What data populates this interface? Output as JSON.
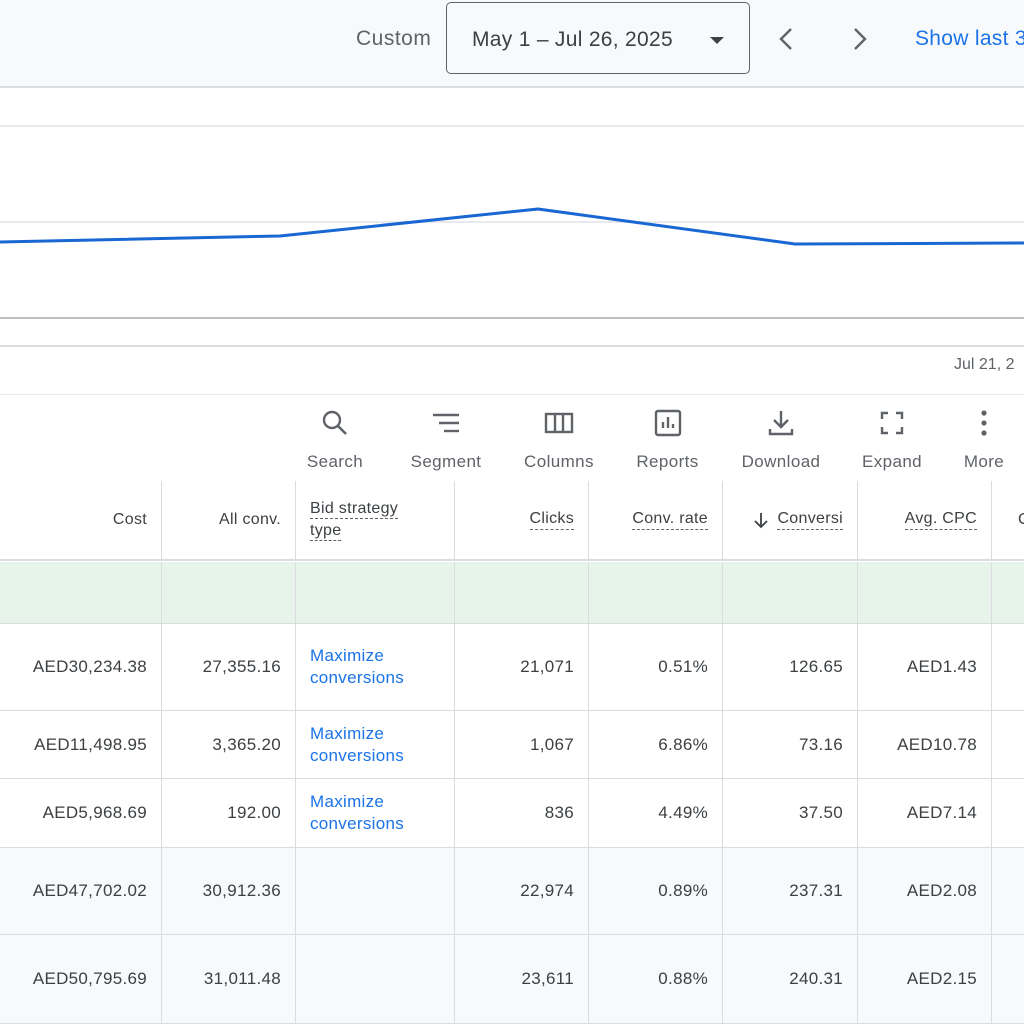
{
  "date_range": {
    "custom_label": "Custom",
    "selected": "May 1 – Jul 26, 2025",
    "show_last_label": "Show last 3"
  },
  "chart": {
    "x_tick": "Jul 21, 2"
  },
  "toolbar": {
    "search": "Search",
    "segment": "Segment",
    "columns": "Columns",
    "reports": "Reports",
    "download": "Download",
    "expand": "Expand",
    "more": "More"
  },
  "table": {
    "headers": {
      "cost": "Cost",
      "all_conv": "All conv.",
      "bid_strategy_line1": "Bid strategy",
      "bid_strategy_line2": "type",
      "clicks": "Clicks",
      "conv_rate": "Conv. rate",
      "conversions": "Conversi",
      "avg_cpc": "Avg. CPC",
      "next": "C"
    },
    "rows": [
      {
        "cost": "AED30,234.38",
        "all_conv": "27,355.16",
        "bid_line1": "Maximize",
        "bid_line2": "conversions",
        "clicks": "21,071",
        "conv_rate": "0.51%",
        "conversions": "126.65",
        "avg_cpc": "AED1.43"
      },
      {
        "cost": "AED11,498.95",
        "all_conv": "3,365.20",
        "bid_line1": "Maximize",
        "bid_line2": "conversions",
        "clicks": "1,067",
        "conv_rate": "6.86%",
        "conversions": "73.16",
        "avg_cpc": "AED10.78"
      },
      {
        "cost": "AED5,968.69",
        "all_conv": "192.00",
        "bid_line1": "Maximize",
        "bid_line2": "conversions",
        "clicks": "836",
        "conv_rate": "4.49%",
        "conversions": "37.50",
        "avg_cpc": "AED7.14"
      }
    ],
    "summary_rows": [
      {
        "cost": "AED47,702.02",
        "all_conv": "30,912.36",
        "clicks": "22,974",
        "conv_rate": "0.89%",
        "conversions": "237.31",
        "avg_cpc": "AED2.08"
      },
      {
        "cost": "AED50,795.69",
        "all_conv": "31,011.48",
        "clicks": "23,611",
        "conv_rate": "0.88%",
        "conversions": "240.31",
        "avg_cpc": "AED2.15"
      }
    ]
  },
  "colors": {
    "accent": "#1a73e8",
    "line": "#1967d2",
    "highlight_row": "#e6f4ea"
  }
}
